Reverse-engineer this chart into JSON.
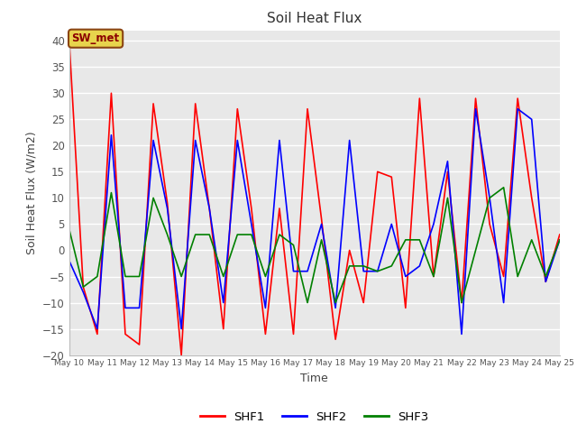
{
  "title": "Soil Heat Flux",
  "xlabel": "Time",
  "ylabel": "Soil Heat Flux (W/m2)",
  "ylim": [
    -20,
    42
  ],
  "yticks": [
    -20,
    -15,
    -10,
    -5,
    0,
    5,
    10,
    15,
    20,
    25,
    30,
    35,
    40
  ],
  "background_color": "#e8e8e8",
  "grid_color": "white",
  "annotation_text": "SW_met",
  "annotation_bg": "#e8d44d",
  "annotation_border": "#8B4513",
  "line_colors": {
    "SHF1": "red",
    "SHF2": "blue",
    "SHF3": "green"
  },
  "xtick_labels": [
    "May 10",
    "May 11",
    "May 12",
    "May 13",
    "May 14",
    "May 15",
    "May 16",
    "May 17",
    "May 18",
    "May 19",
    "May 20",
    "May 21",
    "May 22",
    "May 23",
    "May 24",
    "May 25"
  ],
  "shf1": [
    40,
    -7,
    -16,
    30,
    -16,
    -18,
    28,
    9,
    -20,
    28,
    8,
    -15,
    27,
    8,
    -16,
    8,
    -16,
    27,
    6,
    -17,
    0,
    -10,
    15,
    14,
    -11,
    29,
    -5,
    15,
    -10,
    29,
    5,
    -5,
    29,
    10,
    -6,
    3
  ],
  "shf2": [
    -2,
    -8,
    -15,
    22,
    -11,
    -11,
    21,
    8,
    -15,
    21,
    8,
    -10,
    21,
    5,
    -11,
    21,
    -4,
    -4,
    5,
    -11,
    21,
    -4,
    -4,
    5,
    -5,
    -3,
    5,
    17,
    -16,
    27,
    10,
    -10,
    27,
    25,
    -6,
    2
  ],
  "shf3": [
    4,
    -7,
    -5,
    11,
    -5,
    -5,
    10,
    3,
    -5,
    3,
    3,
    -5,
    3,
    3,
    -5,
    3,
    1,
    -10,
    2,
    -10,
    -3,
    -3,
    -4,
    -3,
    2,
    2,
    -5,
    10,
    -10,
    0,
    10,
    12,
    -5,
    2,
    -5,
    2
  ],
  "n_days": 15,
  "figsize": [
    6.4,
    4.8
  ],
  "dpi": 100
}
